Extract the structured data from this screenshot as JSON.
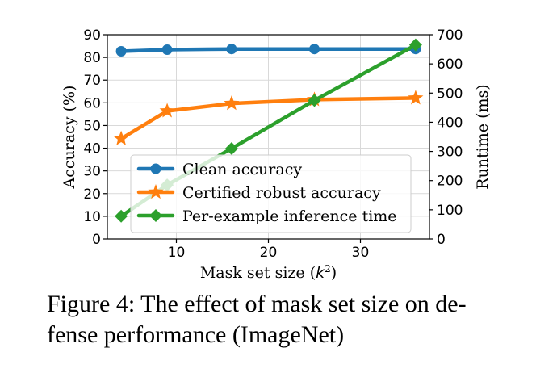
{
  "chart_data": {
    "type": "line",
    "x": [
      4,
      9,
      16,
      25,
      36
    ],
    "xlabel_text": "Mask set size (",
    "xlabel_var": "k",
    "xlabel_sup": "2",
    "xlabel_close": ")",
    "xlim": [
      2.5,
      37.5
    ],
    "xticks": [
      10,
      20,
      30
    ],
    "ylabel": "Accuracy (%)",
    "ylim": [
      0,
      90
    ],
    "yticks": [
      0,
      10,
      20,
      30,
      40,
      50,
      60,
      70,
      80,
      90
    ],
    "y2label": "Runtime (ms)",
    "y2lim": [
      0,
      700
    ],
    "y2ticks": [
      0,
      100,
      200,
      300,
      400,
      500,
      600,
      700
    ],
    "grid": true,
    "legend_position": "lower-left",
    "series": [
      {
        "name": "Clean accuracy",
        "axis": "left",
        "marker": "circle",
        "color": "#1f77b4",
        "values": [
          82.7,
          83.4,
          83.7,
          83.7,
          83.7
        ]
      },
      {
        "name": "Certified robust accuracy",
        "axis": "left",
        "marker": "star",
        "color": "#ff7f0e",
        "values": [
          44.2,
          56.4,
          59.7,
          61.4,
          62.1
        ]
      },
      {
        "name": "Per-example inference time",
        "axis": "right",
        "marker": "diamond",
        "color": "#2ca02c",
        "values": [
          78,
          185,
          310,
          475,
          665
        ]
      }
    ]
  },
  "caption": {
    "line1": "Figure 4: The effect of mask set size on de-",
    "line2": "fense performance (ImageNet)"
  }
}
